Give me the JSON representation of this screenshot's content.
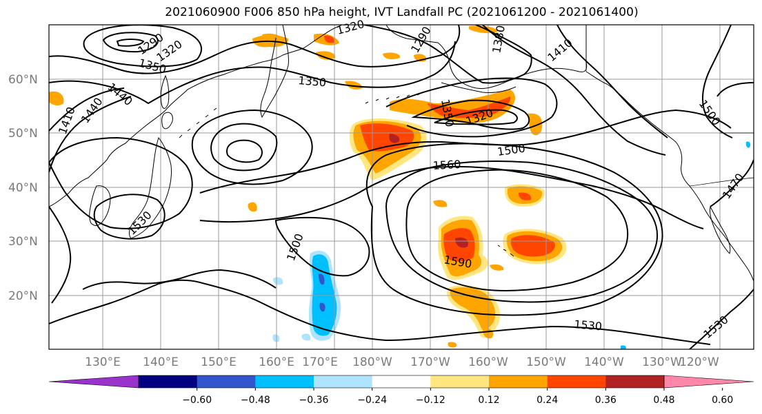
{
  "title": "2021060900 F006 850 hPa height, IVT Landfall PC (2021061200 - 2021061400)",
  "map": {
    "lat_labels": [
      "60°N",
      "50°N",
      "40°N",
      "30°N",
      "20°N"
    ],
    "lon_labels": [
      "130°E",
      "140°E",
      "150°E",
      "160°E",
      "170°E",
      "180°W",
      "170°W",
      "160°W",
      "150°W",
      "140°W",
      "130°W",
      "120°W"
    ],
    "contour_labels": [
      "1290",
      "1320",
      "1350",
      "1320",
      "1290",
      "1380",
      "1410",
      "1440",
      "1410",
      "1440",
      "1350",
      "1350",
      "1320",
      "1500",
      "1500",
      "1560",
      "1530",
      "1500",
      "1590",
      "1530",
      "1530",
      "1470"
    ]
  },
  "colorbar": {
    "tick_labels": [
      "−0.60",
      "−0.48",
      "−0.36",
      "−0.24",
      "−0.12",
      "0.12",
      "0.24",
      "0.36",
      "0.48",
      "0.60"
    ],
    "colors": [
      "#9933cc",
      "#000080",
      "#3355cc",
      "#00bfff",
      "#aee4ff",
      "#ffffff",
      "#ffe680",
      "#ffa500",
      "#ff4500",
      "#b22222",
      "#ff88aa"
    ]
  }
}
